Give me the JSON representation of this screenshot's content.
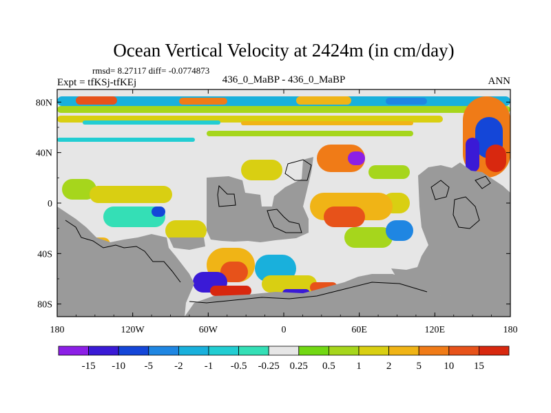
{
  "chart_data": {
    "type": "heatmap",
    "title": "Ocean Vertical Velocity at 2424m (in cm/day)",
    "stats_line": "rmsd= 8.27117 diff= -0.0774873",
    "left_label": "Expt = tfKSj-tfKEj",
    "center_label": "436_0_MaBP - 436_0_MaBP",
    "right_label": "ANN",
    "x_ticks": [
      "180",
      "120W",
      "60W",
      "0",
      "60E",
      "120E",
      "180"
    ],
    "y_ticks": [
      "80N",
      "40N",
      "0",
      "40S",
      "80S"
    ],
    "xlim": [
      -180,
      180
    ],
    "ylim": [
      -90,
      90
    ],
    "colorbar": {
      "labels": [
        "-15",
        "-10",
        "-5",
        "-2",
        "-1",
        "-0.5",
        "-0.25",
        "0.25",
        "0.5",
        "1",
        "2",
        "5",
        "10",
        "15"
      ],
      "colors": [
        "#8c1fe6",
        "#3a1ad6",
        "#1446d8",
        "#1f86e2",
        "#19b0dc",
        "#22cdd2",
        "#34dfb6",
        "#e6e6e6",
        "#72d813",
        "#a6d61c",
        "#d9cf12",
        "#f0b416",
        "#f07b17",
        "#e7521a",
        "#d8280f"
      ]
    },
    "land_color": "#9a9a9a",
    "zero_band_color": "#e6e6e6"
  }
}
